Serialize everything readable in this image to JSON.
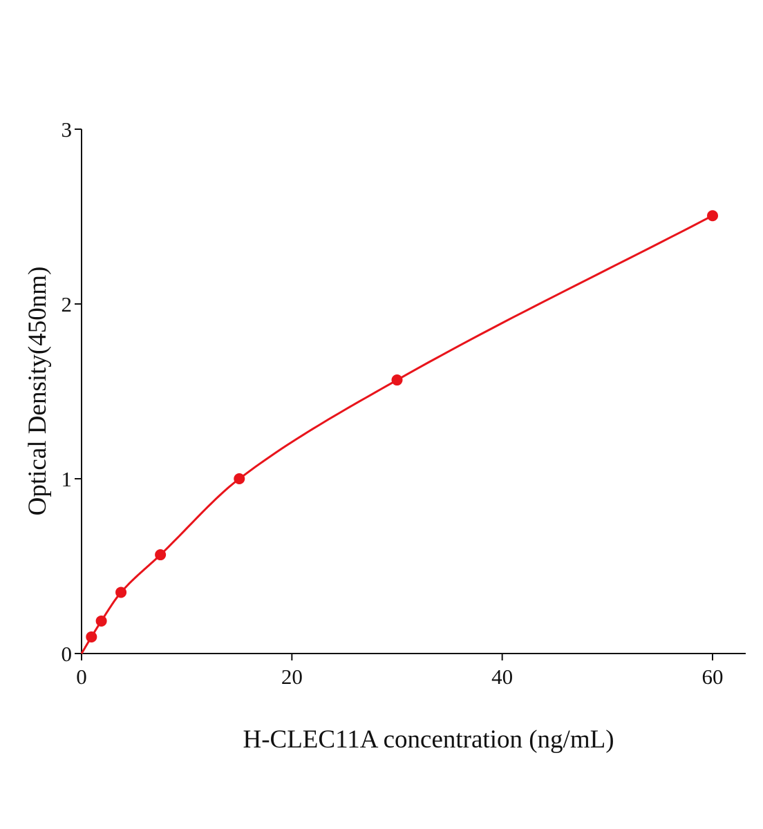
{
  "chart_data": {
    "type": "scatter",
    "title": "",
    "xlabel": "H-CLEC11A concentration (ng/mL)",
    "ylabel": "Optical Density(450nm)",
    "xlim": [
      0,
      63
    ],
    "ylim": [
      0,
      3
    ],
    "xticks": [
      0,
      20,
      40,
      60
    ],
    "yticks": [
      0,
      1,
      2,
      3
    ],
    "grid": false,
    "legend": "none",
    "series": [
      {
        "color": "#e8141b",
        "fit_line": true,
        "points": [
          {
            "x": 0,
            "y": 0
          },
          {
            "x": 0.94,
            "y": 0.095
          },
          {
            "x": 1.88,
            "y": 0.186
          },
          {
            "x": 3.75,
            "y": 0.35
          },
          {
            "x": 7.5,
            "y": 0.565
          },
          {
            "x": 15,
            "y": 1.0
          },
          {
            "x": 30,
            "y": 1.565
          },
          {
            "x": 60,
            "y": 2.505
          }
        ]
      }
    ],
    "axis_color": "#111111"
  }
}
